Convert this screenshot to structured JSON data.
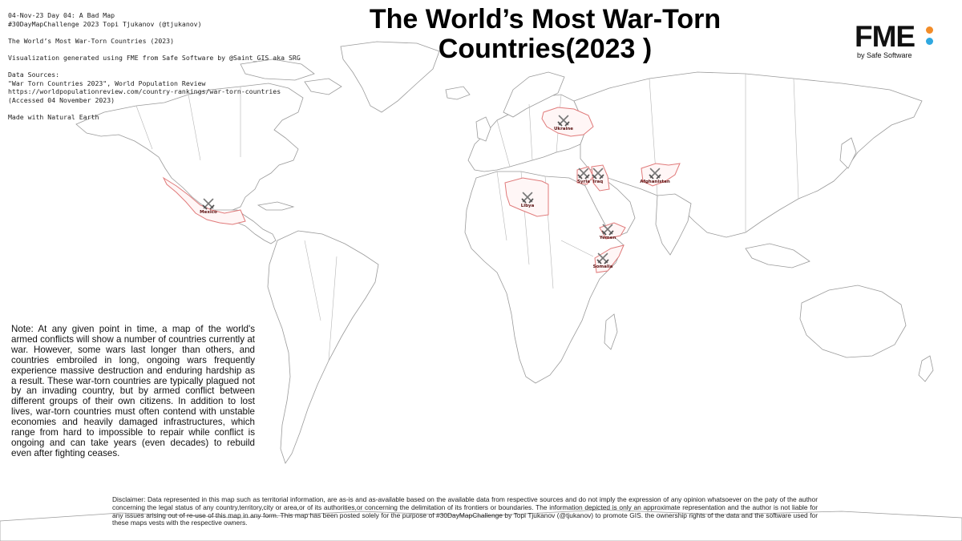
{
  "meta_lines": [
    "04-Nov-23 Day 04: A Bad Map",
    "#30DayMapChallenge 2023 Topi Tjukanov (@tjukanov)",
    "",
    "The World’s Most War-Torn Countries (2023)",
    "",
    "Visualization generated using FME from Safe Software by @Saint_GIS aka SRG",
    "",
    "Data Sources:",
    "\"War Torn Countries 2023\", World Population Review",
    "https://worldpopulationreview.com/country-rankings/war-torn-countries",
    "(Accessed 04 November 2023)",
    "",
    "Made with Natural Earth"
  ],
  "title_line1": "The World’s Most War-Torn",
  "title_line2": "Countries(2023 )",
  "logo": {
    "text": "FME",
    "byline": "by Safe Software",
    "dot_colors": [
      "#f28c28",
      "#2fa8e0"
    ]
  },
  "colors": {
    "war_border": "#e07a7a",
    "land_border": "#9a9a9a"
  },
  "countries": [
    {
      "name": "Ukraine",
      "icon": "crossed-swords-icon"
    },
    {
      "name": "Syria",
      "icon": "crossed-swords-icon"
    },
    {
      "name": "Iraq",
      "icon": "crossed-swords-icon"
    },
    {
      "name": "Afghanistan",
      "icon": "crossed-swords-icon"
    },
    {
      "name": "Libya",
      "icon": "crossed-swords-icon"
    },
    {
      "name": "Mexico",
      "icon": "crossed-swords-icon"
    },
    {
      "name": "Yemen",
      "icon": "crossed-swords-icon"
    },
    {
      "name": "Somalia",
      "icon": "crossed-swords-icon"
    }
  ],
  "note": "Note: At any given point in time, a map of the world's armed conflicts will show a number of countries currently at war. However, some wars last longer than others, and countries embroiled in long, ongoing wars frequently experience massive destruction and enduring hardship as a result. These war-torn countries are typically plagued not by an invading country, but by armed conflict between different groups of their own citizens. In addition to lost lives, war-torn countries must often contend with unstable economies and heavily damaged infrastructures, which range from hard to impossible to repair while conflict is ongoing and can take years (even decades) to rebuild even after fighting ceases.",
  "disclaimer": "Disclaimer: Data represented in this map such as territorial information, are as-is and as-available based on the available data from respective sources and do not imply the expression of any opinion whatsoever on the paty of the author concerning the legal status of any country,territory,city or area,or of its authorities,or concerning the delimitation of its frontiers or boundaries. The information depicted is only an approximate representation and the author is not liable for any issues arising out of re-use of this map in any form. This map has been posted solely for the purpose of #30DayMapChallenge by Topi Tjukanov (@tjukanov) to promote GIS. the ownership rights of the data and the software used for these maps vests with the respective owners."
}
